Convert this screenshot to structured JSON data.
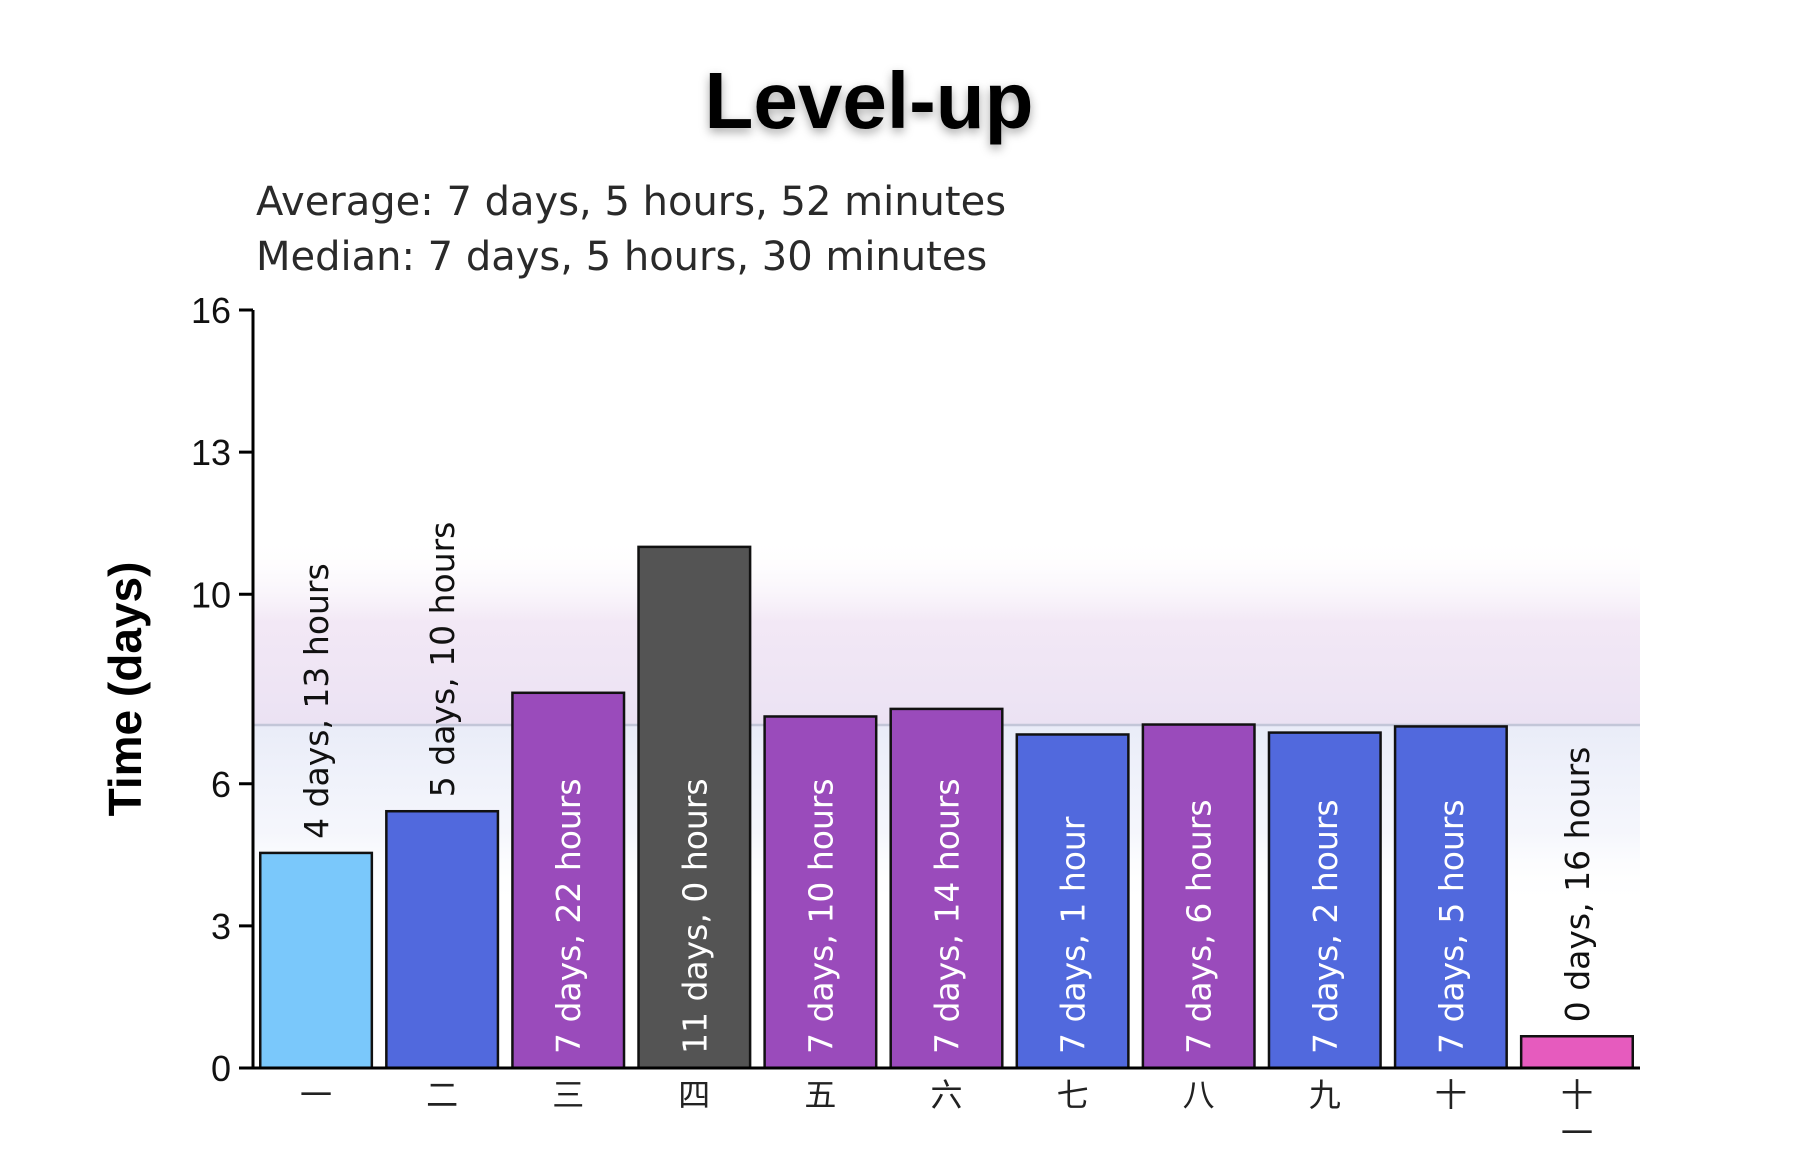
{
  "chart_data": {
    "type": "bar",
    "title": "Level-up",
    "stats": [
      "Average: 7 days, 5 hours, 52 minutes",
      "Median: 7 days, 5 hours, 30 minutes"
    ],
    "xlabel": "",
    "ylabel": "Time (days)",
    "ylim": [
      0,
      16
    ],
    "yticks": [
      0,
      3,
      6,
      10,
      13,
      16
    ],
    "average_days": 7.24,
    "median_days": 7.23,
    "band_days": [
      0,
      11.2
    ],
    "grid": false,
    "categories": [
      [
        "一"
      ],
      [
        "二"
      ],
      [
        "三"
      ],
      [
        "四"
      ],
      [
        "五"
      ],
      [
        "六"
      ],
      [
        "七"
      ],
      [
        "八"
      ],
      [
        "九"
      ],
      [
        "十"
      ],
      [
        "十",
        "一"
      ]
    ],
    "values": [
      4.54,
      5.42,
      7.92,
      11.0,
      7.42,
      7.58,
      7.04,
      7.25,
      7.08,
      7.21,
      0.67
    ],
    "labels": [
      "4 days, 13 hours",
      "5 days, 10 hours",
      "7 days, 22 hours",
      "11 days, 0 hours",
      "7 days, 10 hours",
      "7 days, 14 hours",
      "7 days, 1 hour",
      "7 days, 6 hours",
      "7 days, 2 hours",
      "7 days, 5 hours",
      "0 days, 16 hours"
    ],
    "label_inside": [
      false,
      false,
      true,
      true,
      true,
      true,
      true,
      true,
      true,
      true,
      false
    ],
    "colors": [
      "#7ac8fb",
      "#5169dd",
      "#9a4bbb",
      "#545454",
      "#9a4bbb",
      "#9a4bbb",
      "#5169dd",
      "#9a4bbb",
      "#5169dd",
      "#5169dd",
      "#e65bbe"
    ]
  }
}
